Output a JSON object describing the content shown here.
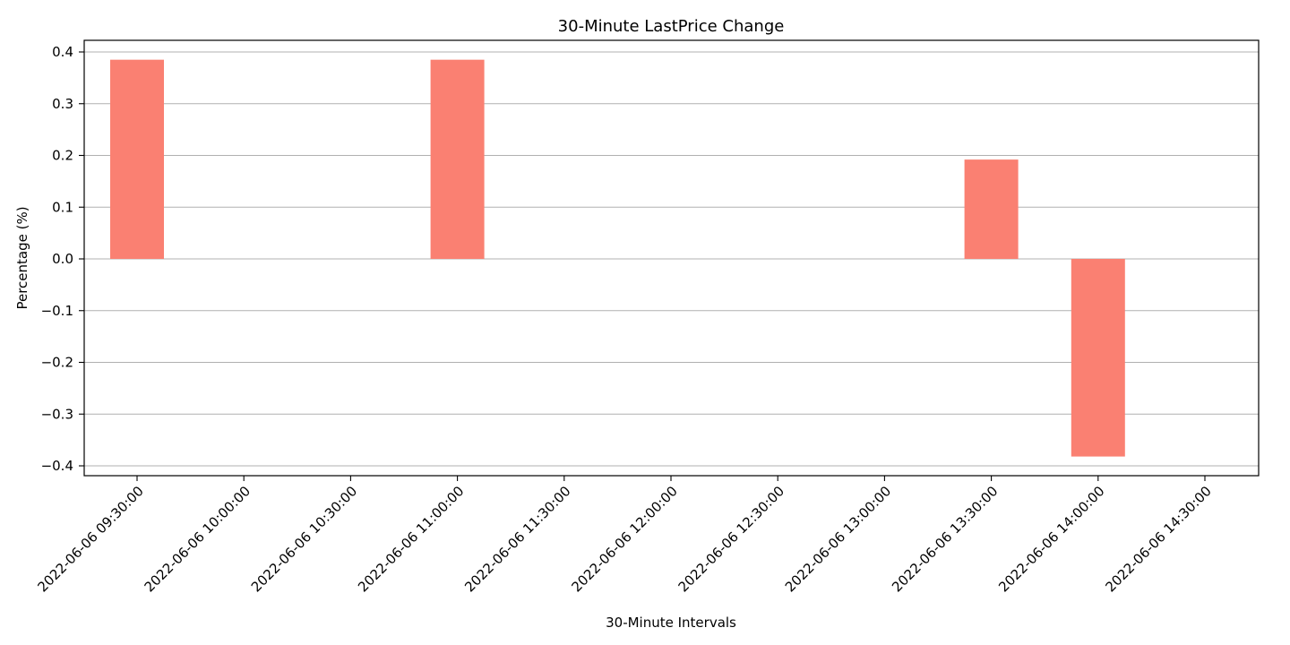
{
  "chart_data": {
    "type": "bar",
    "title": "30-Minute LastPrice Change",
    "xlabel": "30-Minute Intervals",
    "ylabel": "Percentage (%)",
    "categories": [
      "2022-06-06 09:30:00",
      "2022-06-06 10:00:00",
      "2022-06-06 10:30:00",
      "2022-06-06 11:00:00",
      "2022-06-06 11:30:00",
      "2022-06-06 12:00:00",
      "2022-06-06 12:30:00",
      "2022-06-06 13:00:00",
      "2022-06-06 13:30:00",
      "2022-06-06 14:00:00",
      "2022-06-06 14:30:00"
    ],
    "values": [
      0.385,
      0,
      0,
      0.385,
      0,
      0,
      0,
      0,
      0.192,
      -0.382,
      0
    ],
    "ylim": [
      -0.42,
      0.42
    ],
    "yticks": [
      0.4,
      0.3,
      0.2,
      0.1,
      0.0,
      -0.1,
      -0.2,
      -0.3,
      -0.4
    ],
    "ytick_labels": [
      "0.4",
      "0.3",
      "0.2",
      "0.1",
      "0.0",
      "−0.1",
      "−0.2",
      "−0.3",
      "−0.4"
    ],
    "grid": "horizontal",
    "bar_color": "#fa8072",
    "xtick_rotation": 45
  }
}
